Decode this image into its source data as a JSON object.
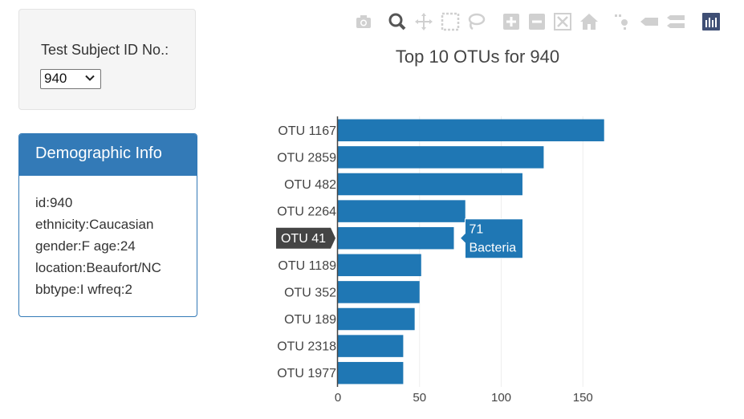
{
  "selector": {
    "label": "Test Subject ID No.:",
    "selected": "940"
  },
  "demographics": {
    "title": "Demographic Info",
    "lines": [
      "id:940",
      "ethnicity:Caucasian",
      "gender:F age:24",
      "location:Beaufort/NC",
      "bbtype:I wfreq:2"
    ]
  },
  "toolbar": {
    "icons": [
      "camera-icon",
      "zoom-icon",
      "pan-icon",
      "box-select-icon",
      "lasso-select-icon",
      "zoom-in-icon",
      "zoom-out-icon",
      "autoscale-icon",
      "reset-axes-icon",
      "spike-lines-icon",
      "hover-closest-icon",
      "hover-compare-icon",
      "plotly-logo-icon"
    ]
  },
  "chart_data": {
    "type": "bar",
    "orientation": "horizontal",
    "title": "Top 10 OTUs for 940",
    "categories": [
      "OTU 1167",
      "OTU 2859",
      "OTU 482",
      "OTU 2264",
      "OTU 41",
      "OTU 1189",
      "OTU 352",
      "OTU 189",
      "OTU 2318",
      "OTU 1977"
    ],
    "values": [
      163,
      126,
      113,
      78,
      71,
      51,
      50,
      47,
      40,
      40
    ],
    "xlim": [
      0,
      170
    ],
    "xticks": [
      0,
      50,
      100,
      150
    ],
    "grid": true,
    "color": "#1f77b4",
    "hover": {
      "category": "OTU 41",
      "value": "71",
      "label": "Bacteria"
    }
  }
}
